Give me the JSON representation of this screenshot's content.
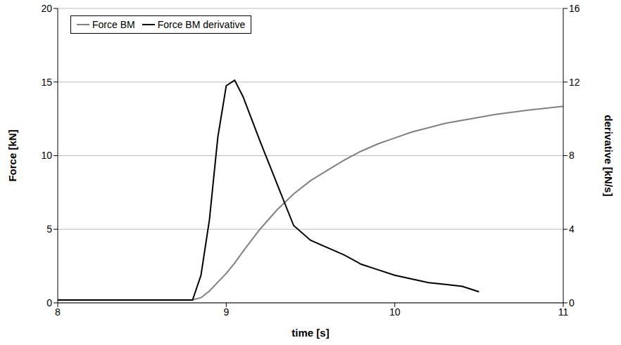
{
  "chart_data": {
    "type": "line",
    "xlabel": "time [s]",
    "ylabel": "Force [kN]",
    "y2label": "derivative [kN/s]",
    "x": [
      8,
      8.4,
      8.8,
      8.85,
      8.9,
      8.95,
      9.0,
      9.05,
      9.1,
      9.2,
      9.3,
      9.4,
      9.5,
      9.6,
      9.7,
      9.8,
      9.9,
      10.0,
      10.1,
      10.2,
      10.3,
      10.4,
      10.5,
      10.6,
      10.8,
      11.0
    ],
    "series": [
      {
        "name": "Force BM",
        "color": "#808080",
        "values": [
          0.2,
          0.2,
          0.2,
          0.35,
          0.8,
          1.4,
          2.0,
          2.7,
          3.5,
          5.0,
          6.3,
          7.4,
          8.3,
          9.0,
          9.7,
          10.3,
          10.8,
          11.2,
          11.6,
          11.9,
          12.2,
          12.4,
          12.6,
          12.8,
          13.1,
          13.35
        ]
      },
      {
        "name": "Force BM derivative",
        "color": "#000000",
        "axis": "y2",
        "values": [
          0.15,
          0.15,
          0.15,
          1.5,
          4.5,
          9.0,
          11.8,
          12.1,
          11.2,
          8.8,
          6.5,
          4.2,
          3.4,
          3.0,
          2.6,
          2.1,
          1.8,
          1.5,
          1.3,
          1.1,
          1.0,
          0.9,
          0.6,
          null,
          null,
          null
        ]
      }
    ],
    "xlim": [
      8,
      11
    ],
    "xticks": [
      8,
      9,
      10,
      11
    ],
    "ylim": [
      0,
      20
    ],
    "yticks": [
      0,
      5,
      10,
      15,
      20
    ],
    "y2lim": [
      0,
      16
    ],
    "y2ticks": [
      0,
      4,
      8,
      12,
      16
    ],
    "grid": true,
    "legend": "top-left"
  }
}
